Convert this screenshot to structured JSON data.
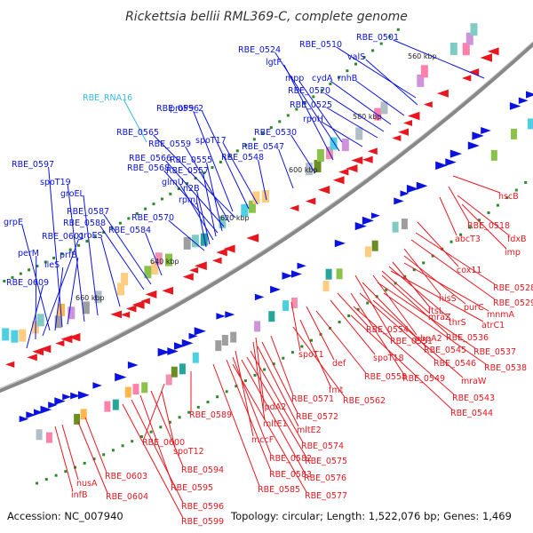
{
  "title": "Rickettsia bellii RML369-C, complete genome",
  "footer": {
    "accession": "Accession: NC_007940",
    "summary": "Topology: circular; Length: 1,522,076 bp; Genes: 1,469"
  },
  "colors": {
    "forward_strand": "#0a12e0",
    "reverse_strand": "#e8171f",
    "rna": "#33bbdd",
    "backbone": "#777777",
    "ticks": "#2a8a2a"
  },
  "scale_labels": [
    "560 kbp",
    "580 kbp",
    "600 kbp",
    "620 kbp",
    "640 kbp",
    "660 kbp"
  ],
  "forward_genes": [
    "RBE_0501",
    "RBE_0510",
    "valS",
    "rnhB",
    "cydA",
    "RBE_0520",
    "RBE_0525",
    "rpoH",
    "RBE_0524",
    "lgtF",
    "mpp",
    "RBE_0530",
    "RBE_0547",
    "RBE_0548",
    "spoT17",
    "proP9_2",
    "RBE_0556",
    "RBE_RNA16",
    "RBE_0565",
    "RBE_0559",
    "RBE_0566",
    "RBE_0555",
    "RBE_0568",
    "RBE_0557",
    "glmU",
    "n2B",
    "rpmJ",
    "RBE_0570",
    "RBE_0584",
    "RBE_0587",
    "RBE_0588",
    "groES",
    "groEL",
    "spoT19",
    "RBE_0597",
    "grpE",
    "RBE_0601",
    "perM",
    "ileS",
    "prfB",
    "RBE_0609"
  ],
  "reverse_genes": [
    "hscB",
    "RBE_0518",
    "abcT3",
    "fdxB",
    "imp",
    "cox11",
    "RBE_0528",
    "RBE_0529",
    "hisS",
    "purC",
    "mnmA",
    "ftsL",
    "thrS",
    "atrC1",
    "mraZ",
    "RBE_0536",
    "pbpA2",
    "RBE_0537",
    "RBE_0545",
    "RBE_0551",
    "RBE_0538",
    "RBE_0546",
    "mraW",
    "RBE_0549",
    "RBE_0543",
    "RBE_0544",
    "RBE_0554",
    "spoT18",
    "spoT1",
    "def",
    "RBE_0558",
    "fmt",
    "RBE_0562",
    "RBE_0571",
    "lpdA2",
    "RBE_0572",
    "mltE1",
    "mltE2",
    "RBE_0574",
    "mccF",
    "RBE_0582",
    "RBE_0575",
    "RBE_0583",
    "RBE_0576",
    "RBE_0585",
    "RBE_0577",
    "RBE_0589",
    "RBE_0600",
    "spoT12",
    "RBE_0594",
    "RBE_0595",
    "RBE_0596",
    "RBE_0599",
    "RBE_0603",
    "RBE_0604",
    "nusA",
    "infB"
  ]
}
